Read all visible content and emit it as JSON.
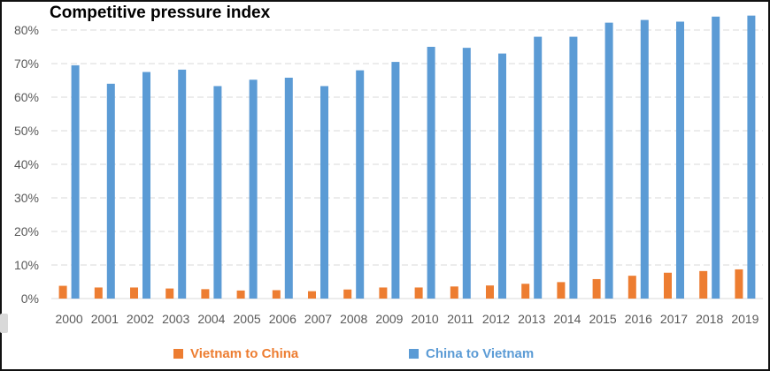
{
  "chart_data": {
    "type": "bar",
    "title": "Competitive pressure index",
    "xlabel": "",
    "ylabel": "",
    "categories": [
      "2000",
      "2001",
      "2002",
      "2003",
      "2004",
      "2005",
      "2006",
      "2007",
      "2008",
      "2009",
      "2010",
      "2011",
      "2012",
      "2013",
      "2014",
      "2015",
      "2016",
      "2017",
      "2018",
      "2019"
    ],
    "series": [
      {
        "name": "Vietnam to China",
        "color": "#ED7D31",
        "values": [
          3.8,
          3.3,
          3.3,
          3.0,
          2.8,
          2.4,
          2.5,
          2.2,
          2.7,
          3.3,
          3.3,
          3.6,
          3.9,
          4.4,
          4.9,
          5.8,
          6.8,
          7.7,
          8.2,
          8.7
        ]
      },
      {
        "name": "China to Vietnam",
        "color": "#5B9BD5",
        "values": [
          69.5,
          64.0,
          67.5,
          68.2,
          63.3,
          65.2,
          65.8,
          63.3,
          68.0,
          70.5,
          75.0,
          74.7,
          73.0,
          78.0,
          78.0,
          82.2,
          83.0,
          82.5,
          84.0,
          84.3
        ]
      }
    ],
    "yticks": [
      "0%",
      "10%",
      "20%",
      "30%",
      "40%",
      "50%",
      "60%",
      "70%",
      "80%"
    ],
    "ylim": [
      0,
      80
    ],
    "grid": true,
    "gridstyle": "dashed horizontal",
    "legend_position": "bottom"
  }
}
